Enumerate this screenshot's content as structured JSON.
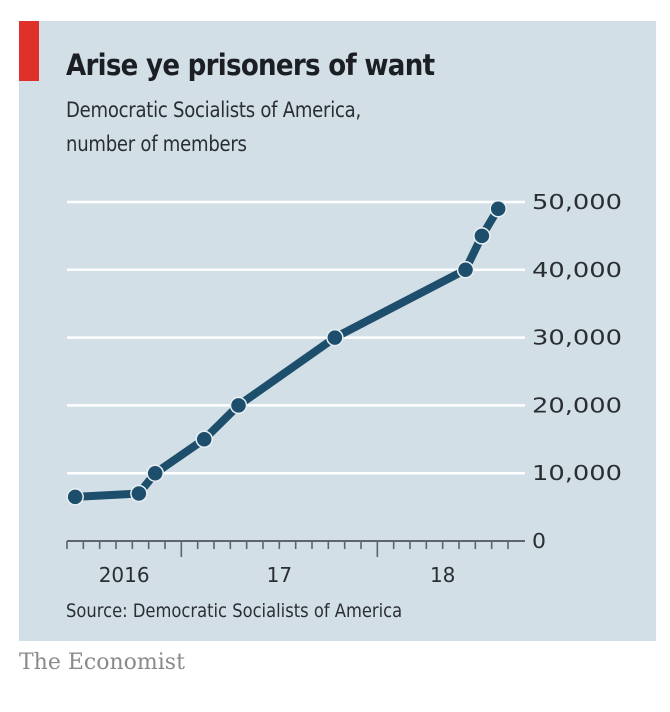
{
  "header": {
    "title": "Arise ye prisoners of want",
    "subtitle_line1": "Democratic Socialists of America,",
    "subtitle_line2": "number of members"
  },
  "footer": {
    "source": "Source: Democratic Socialists of America",
    "brand": "The Economist"
  },
  "colors": {
    "accent": "#e0302a",
    "line": "#1d4e6b",
    "background": "#d2dfe7",
    "gridline": "#ffffff"
  },
  "chart_data": {
    "type": "line",
    "title": "Arise ye prisoners of want",
    "subtitle": "Democratic Socialists of America, number of members",
    "xlabel": "",
    "ylabel": "",
    "x_unit": "months since June 2016",
    "xlim": [
      0,
      27
    ],
    "ylim": [
      0,
      50000
    ],
    "y_ticks": [
      0,
      10000,
      20000,
      30000,
      40000,
      50000
    ],
    "y_tick_labels": [
      "0",
      "10,000",
      "20,000",
      "30,000",
      "40,000",
      "50,000"
    ],
    "y_axis_position": "right",
    "x_major_ticks": [
      7,
      19
    ],
    "x_tick_labels": [
      {
        "label": "2016",
        "at": 3.5
      },
      {
        "label": "17",
        "at": 13
      },
      {
        "label": "18",
        "at": 23
      }
    ],
    "grid": true,
    "legend": "none",
    "series": [
      {
        "name": "DSA members",
        "points": [
          {
            "x": 0.5,
            "date": "2016-06",
            "y": 6500
          },
          {
            "x": 4.4,
            "date": "2016-10",
            "y": 7000
          },
          {
            "x": 5.4,
            "date": "2016-11",
            "y": 10000
          },
          {
            "x": 8.4,
            "date": "2017-02",
            "y": 15000
          },
          {
            "x": 10.5,
            "date": "2017-04",
            "y": 20000
          },
          {
            "x": 16.4,
            "date": "2017-10",
            "y": 30000
          },
          {
            "x": 24.4,
            "date": "2018-06",
            "y": 40000
          },
          {
            "x": 25.4,
            "date": "2018-07",
            "y": 45000
          },
          {
            "x": 26.4,
            "date": "2018-08",
            "y": 49000
          }
        ]
      }
    ]
  }
}
